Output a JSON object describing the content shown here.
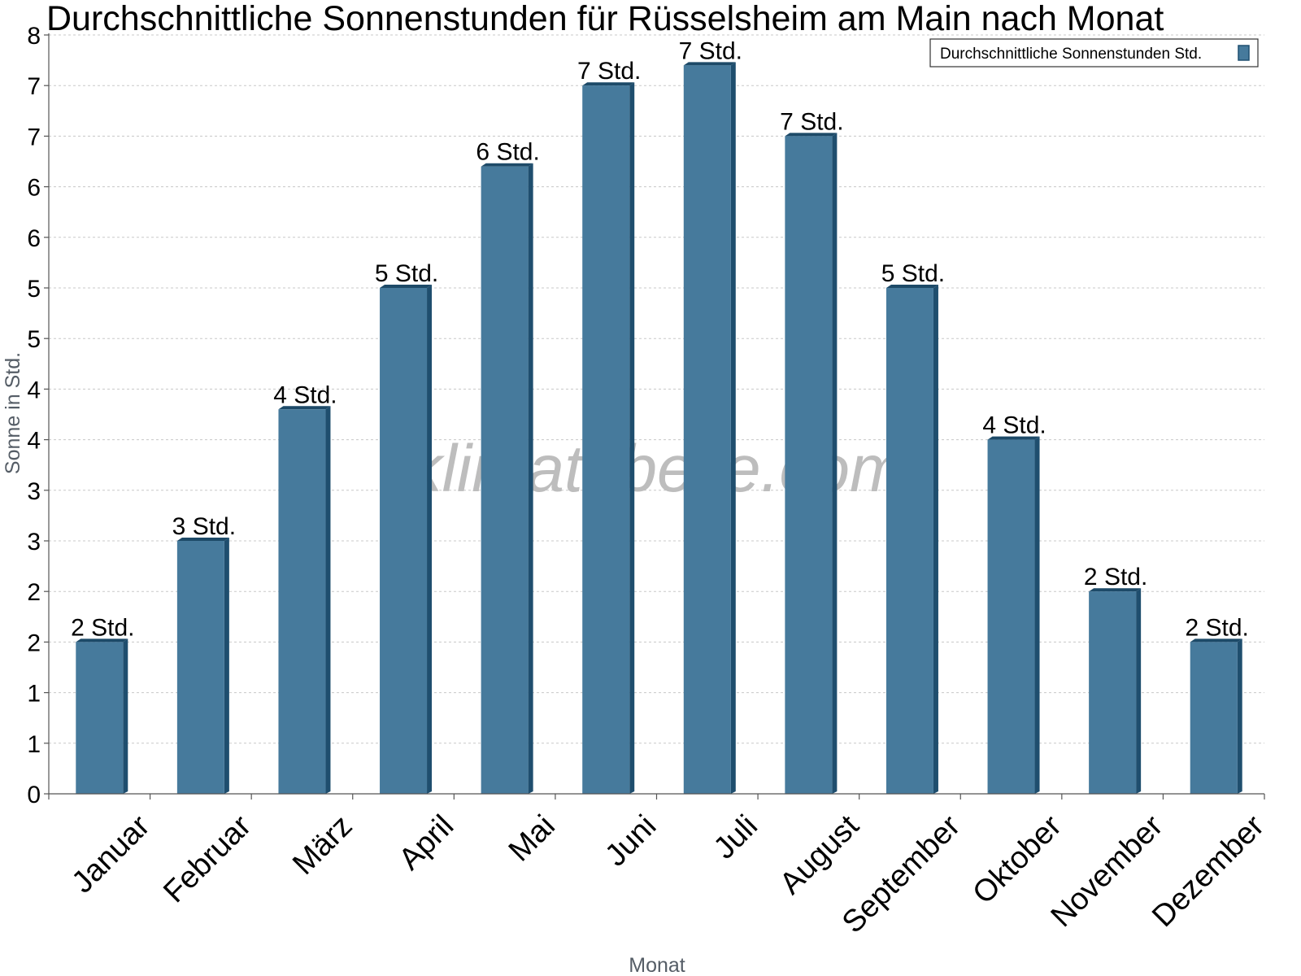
{
  "chart_data": {
    "type": "bar",
    "title": "Durchschnittliche Sonnenstunden für Rüsselsheim am Main nach Monat",
    "xlabel": "Monat",
    "ylabel": "Sonne in Std.",
    "ylim": [
      0,
      7.5
    ],
    "yticks": [
      0,
      0.5,
      1,
      1.5,
      2,
      2.5,
      3,
      3.5,
      4,
      4.5,
      5,
      5.5,
      6,
      6.5,
      7,
      7.5
    ],
    "ytick_labels": [
      "0",
      "1",
      "1",
      "2",
      "2",
      "3",
      "3",
      "4",
      "4",
      "5",
      "5",
      "6",
      "6",
      "7",
      "7",
      "8"
    ],
    "grid": true,
    "legend_position": "top-right",
    "categories": [
      "Januar",
      "Februar",
      "März",
      "April",
      "Mai",
      "Juni",
      "Juli",
      "August",
      "September",
      "Oktober",
      "November",
      "Dezember"
    ],
    "series": [
      {
        "name": "Durchschnittliche Sonnenstunden Std.",
        "color": "#467a9c",
        "values": [
          1.5,
          2.5,
          3.8,
          5.0,
          6.2,
          7.0,
          7.2,
          6.5,
          5.0,
          3.5,
          2.0,
          1.5
        ],
        "data_labels": [
          "2 Std.",
          "3 Std.",
          "4 Std.",
          "5 Std.",
          "6 Std.",
          "7 Std.",
          "7 Std.",
          "7 Std.",
          "5 Std.",
          "4 Std.",
          "2 Std.",
          "2 Std."
        ]
      }
    ],
    "watermark": "klimatabelle.com"
  }
}
